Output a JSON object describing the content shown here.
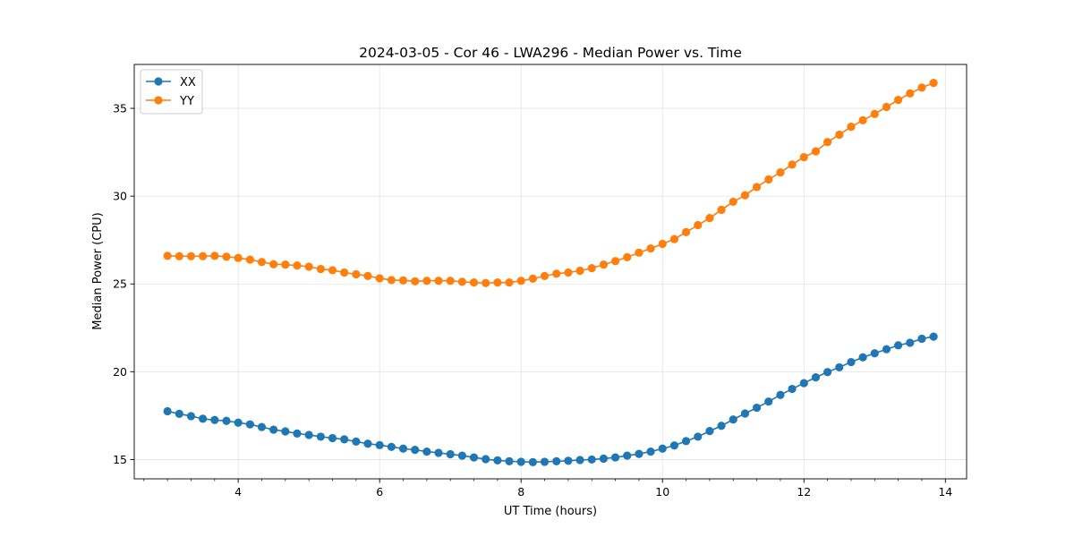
{
  "chart_data": {
    "type": "line",
    "title": "2024-03-05 - Cor 46 - LWA296 - Median Power vs. Time",
    "xlabel": "UT Time (hours)",
    "ylabel": "Median Power (CPU)",
    "xlim": [
      2.53,
      14.3
    ],
    "ylim": [
      13.9,
      37.5
    ],
    "xticks": [
      4,
      6,
      8,
      10,
      12,
      14
    ],
    "xtick_labels": [
      "4",
      "6",
      "8",
      "10",
      "12",
      "14"
    ],
    "xminor_step": 0.333333,
    "yticks": [
      15,
      20,
      25,
      30,
      35
    ],
    "ytick_labels": [
      "15",
      "20",
      "25",
      "30",
      "35"
    ],
    "grid": true,
    "legend_position": "top-left",
    "x": [
      3.0,
      3.167,
      3.333,
      3.5,
      3.667,
      3.833,
      4.0,
      4.167,
      4.333,
      4.5,
      4.667,
      4.833,
      5.0,
      5.167,
      5.333,
      5.5,
      5.667,
      5.833,
      6.0,
      6.167,
      6.333,
      6.5,
      6.667,
      6.833,
      7.0,
      7.167,
      7.333,
      7.5,
      7.667,
      7.833,
      8.0,
      8.167,
      8.333,
      8.5,
      8.667,
      8.833,
      9.0,
      9.167,
      9.333,
      9.5,
      9.667,
      9.833,
      10.0,
      10.167,
      10.333,
      10.5,
      10.667,
      10.833,
      11.0,
      11.167,
      11.333,
      11.5,
      11.667,
      11.833,
      12.0,
      12.167,
      12.333,
      12.5,
      12.667,
      12.833,
      13.0,
      13.167,
      13.333,
      13.5,
      13.667,
      13.833
    ],
    "series": [
      {
        "name": "XX",
        "color": "#1f77b4",
        "values": [
          17.75,
          17.6,
          17.47,
          17.32,
          17.25,
          17.2,
          17.1,
          17.0,
          16.85,
          16.7,
          16.6,
          16.48,
          16.4,
          16.3,
          16.22,
          16.15,
          16.02,
          15.9,
          15.82,
          15.72,
          15.62,
          15.55,
          15.45,
          15.38,
          15.3,
          15.22,
          15.12,
          15.02,
          14.95,
          14.9,
          14.87,
          14.85,
          14.87,
          14.9,
          14.93,
          14.97,
          15.0,
          15.05,
          15.12,
          15.22,
          15.32,
          15.45,
          15.62,
          15.8,
          16.05,
          16.3,
          16.62,
          16.92,
          17.28,
          17.62,
          17.95,
          18.3,
          18.68,
          19.02,
          19.35,
          19.68,
          19.98,
          20.25,
          20.55,
          20.82,
          21.05,
          21.28,
          21.5,
          21.65,
          21.88,
          22.0
        ]
      },
      {
        "name": "YY",
        "color": "#ff7f0e",
        "values": [
          26.6,
          26.58,
          26.58,
          26.58,
          26.6,
          26.55,
          26.48,
          26.38,
          26.25,
          26.12,
          26.1,
          26.05,
          25.98,
          25.85,
          25.78,
          25.65,
          25.55,
          25.45,
          25.32,
          25.22,
          25.2,
          25.15,
          25.18,
          25.18,
          25.18,
          25.12,
          25.08,
          25.05,
          25.08,
          25.08,
          25.18,
          25.3,
          25.45,
          25.58,
          25.65,
          25.75,
          25.9,
          26.1,
          26.3,
          26.52,
          26.78,
          27.02,
          27.28,
          27.55,
          27.95,
          28.35,
          28.75,
          29.22,
          29.68,
          30.05,
          30.52,
          30.95,
          31.35,
          31.8,
          32.22,
          32.55,
          33.08,
          33.5,
          33.95,
          34.32,
          34.68,
          35.08,
          35.48,
          35.85,
          36.18,
          36.45
        ]
      }
    ]
  }
}
